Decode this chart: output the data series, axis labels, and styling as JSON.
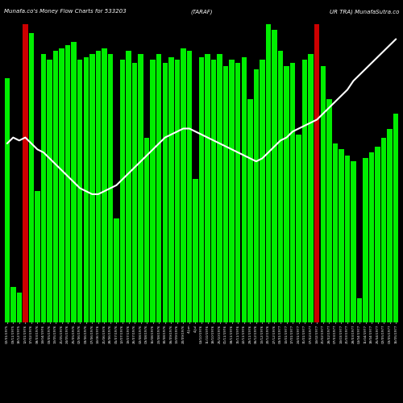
{
  "title_left": "Munafa.co's Money Flow Charts for 533203",
  "title_center": "(TARAF)",
  "title_right": "UR TRA) MunafaSutra.co",
  "background_color": "#000000",
  "bar_color_positive": "#00ee00",
  "bar_color_negative": "#cc0000",
  "line_color": "#ffffff",
  "bar_values": [
    0.82,
    0.12,
    0.1,
    1.0,
    0.97,
    0.44,
    0.9,
    0.88,
    0.91,
    0.92,
    0.93,
    0.94,
    0.88,
    0.89,
    0.9,
    0.91,
    0.92,
    0.9,
    0.35,
    0.88,
    0.91,
    0.87,
    0.9,
    0.62,
    0.88,
    0.9,
    0.87,
    0.89,
    0.88,
    0.92,
    0.91,
    0.48,
    0.89,
    0.9,
    0.88,
    0.9,
    0.86,
    0.88,
    0.87,
    0.89,
    0.75,
    0.85,
    0.88,
    1.0,
    0.98,
    0.91,
    0.86,
    0.87,
    0.63,
    0.88,
    0.9,
    1.0,
    0.86,
    0.75,
    0.6,
    0.58,
    0.56,
    0.54,
    0.08,
    0.55,
    0.57,
    0.59,
    0.62,
    0.65,
    0.7
  ],
  "bar_colors": [
    "g",
    "g",
    "g",
    "r",
    "g",
    "g",
    "g",
    "g",
    "g",
    "g",
    "g",
    "g",
    "g",
    "g",
    "g",
    "g",
    "g",
    "g",
    "g",
    "g",
    "g",
    "g",
    "g",
    "g",
    "g",
    "g",
    "g",
    "g",
    "g",
    "g",
    "g",
    "g",
    "g",
    "g",
    "g",
    "g",
    "g",
    "g",
    "g",
    "g",
    "g",
    "g",
    "g",
    "g",
    "g",
    "g",
    "g",
    "g",
    "g",
    "g",
    "g",
    "r",
    "g",
    "g",
    "g",
    "g",
    "g",
    "g",
    "g",
    "g",
    "g",
    "g",
    "g",
    "g",
    "g"
  ],
  "line_values": [
    0.6,
    0.62,
    0.61,
    0.62,
    0.6,
    0.58,
    0.57,
    0.55,
    0.53,
    0.51,
    0.49,
    0.47,
    0.45,
    0.44,
    0.43,
    0.43,
    0.44,
    0.45,
    0.46,
    0.48,
    0.5,
    0.52,
    0.54,
    0.56,
    0.58,
    0.6,
    0.62,
    0.63,
    0.64,
    0.65,
    0.65,
    0.64,
    0.63,
    0.62,
    0.61,
    0.6,
    0.59,
    0.58,
    0.57,
    0.56,
    0.55,
    0.54,
    0.55,
    0.57,
    0.59,
    0.61,
    0.62,
    0.64,
    0.65,
    0.66,
    0.67,
    0.68,
    0.7,
    0.72,
    0.74,
    0.76,
    0.78,
    0.81,
    0.83,
    0.85,
    0.87,
    0.89,
    0.91,
    0.93,
    0.95
  ],
  "xlabels": [
    "02/01/1975",
    "03/11/1975",
    "18/12/1975",
    "12/01/1976",
    "17/02/1976",
    "08/03/1976",
    "14/04/1976",
    "03/05/1976",
    "13/05/1976",
    "21/05/1976",
    "24/05/1976",
    "25/05/1976",
    "02/06/1976",
    "03/06/1976",
    "07/06/1976",
    "14/06/1976",
    "21/06/1976",
    "28/06/1976",
    "05/07/1976",
    "12/07/1976",
    "19/07/1976",
    "26/07/1976",
    "02/08/1976",
    "09/08/1976",
    "16/08/1976",
    "23/08/1976",
    "30/08/1976",
    "06/09/1976",
    "13/09/1976",
    "20/09/1976",
    "4-Jun",
    "4-Jul",
    "04/10/1976",
    "11/10/1976",
    "18/10/1976",
    "25/10/1976",
    "01/11/1976",
    "08/11/1976",
    "15/11/1976",
    "22/11/1976",
    "29/11/1976",
    "06/12/1976",
    "13/12/1976",
    "20/12/1976",
    "27/12/1976",
    "03/01/1977",
    "10/01/1977",
    "17/01/1977",
    "24/01/1977",
    "31/01/1977",
    "07/02/1977",
    "14/02/1977",
    "21/02/1977",
    "28/02/1977",
    "07/03/1977",
    "14/03/1977",
    "21/03/1977",
    "28/03/1977",
    "04/04/1977",
    "11/04/1977",
    "18/04/1977",
    "25/04/1977",
    "02/05/1977",
    "09/05/1977",
    "16/05/1977"
  ]
}
